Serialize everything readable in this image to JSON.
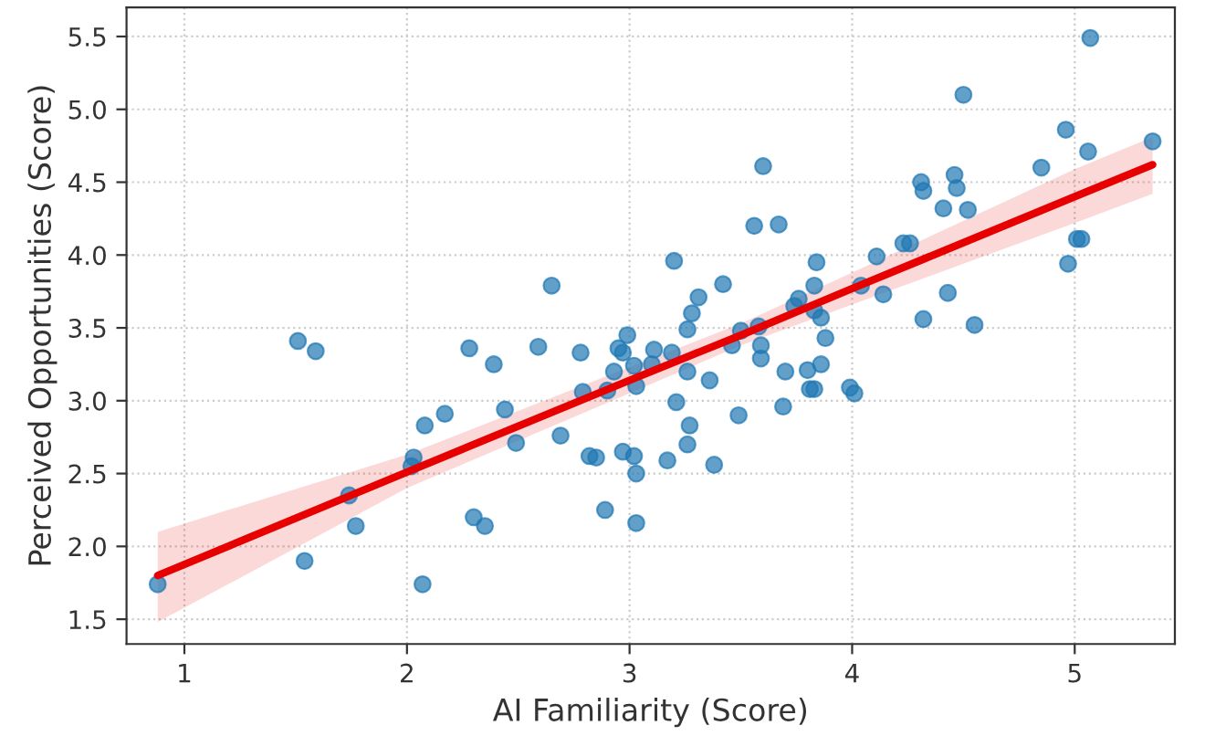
{
  "chart_data": {
    "type": "scatter",
    "xlabel": "AI Familiarity (Score)",
    "ylabel": "Perceived Opportunities (Score)",
    "xlim": [
      0.74,
      5.45
    ],
    "ylim": [
      1.33,
      5.7
    ],
    "xticks": [
      1,
      2,
      3,
      4,
      5
    ],
    "yticks": [
      {
        "value": 1.5,
        "label": "1.5"
      },
      {
        "value": 2,
        "label": "2.0"
      },
      {
        "value": 2.5,
        "label": "2.5"
      },
      {
        "value": 3,
        "label": "3.0"
      },
      {
        "value": 3.5,
        "label": "3.5"
      },
      {
        "value": 4,
        "label": "4.0"
      },
      {
        "value": 4.5,
        "label": "4.5"
      },
      {
        "value": 5,
        "label": "5.0"
      },
      {
        "value": 5.5,
        "label": "5.5"
      }
    ],
    "grid": true,
    "series": [
      {
        "marker": "circle",
        "color": "#1f77b4",
        "x": [
          0.88,
          1.51,
          1.59,
          1.54,
          1.74,
          1.77,
          2.03,
          2.02,
          2.08,
          2.17,
          2.07,
          2.3,
          2.35,
          2.28,
          2.39,
          2.44,
          2.49,
          2.59,
          2.65,
          2.69,
          2.78,
          2.79,
          2.9,
          2.93,
          2.89,
          2.82,
          2.85,
          2.97,
          3.02,
          3.03,
          3.03,
          2.95,
          2.97,
          2.99,
          3.02,
          3.03,
          3.11,
          3.1,
          3.17,
          3.19,
          3.2,
          3.21,
          3.26,
          3.26,
          3.28,
          3.27,
          3.26,
          3.31,
          3.36,
          3.38,
          3.42,
          3.46,
          3.49,
          3.5,
          3.58,
          3.59,
          3.59,
          3.56,
          3.67,
          3.6,
          3.7,
          3.69,
          3.74,
          3.76,
          3.8,
          3.81,
          3.83,
          3.83,
          3.84,
          3.83,
          3.86,
          3.88,
          3.86,
          3.99,
          4.01,
          4.04,
          4.11,
          4.14,
          4.23,
          4.26,
          4.31,
          4.32,
          4.41,
          4.32,
          4.43,
          4.46,
          4.47,
          4.5,
          4.52,
          4.55,
          4.85,
          4.96,
          4.97,
          5.01,
          5.03,
          5.06,
          5.07,
          5.35
        ],
        "values": [
          1.74,
          3.41,
          3.34,
          1.9,
          2.35,
          2.14,
          2.61,
          2.55,
          2.83,
          2.91,
          1.74,
          2.2,
          2.14,
          3.36,
          3.25,
          2.94,
          2.71,
          3.37,
          3.79,
          2.76,
          3.33,
          3.06,
          3.07,
          3.2,
          2.25,
          2.62,
          2.61,
          2.65,
          2.62,
          2.5,
          2.16,
          3.36,
          3.33,
          3.45,
          3.24,
          3.1,
          3.35,
          3.25,
          2.59,
          3.33,
          3.96,
          2.99,
          3.49,
          3.2,
          3.6,
          2.83,
          2.7,
          3.71,
          3.14,
          2.56,
          3.8,
          3.38,
          2.9,
          3.48,
          3.51,
          3.38,
          3.29,
          4.2,
          4.21,
          4.61,
          3.2,
          2.96,
          3.65,
          3.7,
          3.21,
          3.08,
          3.08,
          3.79,
          3.95,
          3.62,
          3.57,
          3.43,
          3.25,
          3.09,
          3.05,
          3.79,
          3.99,
          3.73,
          4.08,
          4.08,
          4.5,
          4.44,
          4.32,
          3.56,
          3.74,
          4.55,
          4.46,
          5.1,
          4.31,
          3.52,
          4.6,
          4.86,
          3.94,
          4.11,
          4.11,
          4.71,
          5.49,
          4.78
        ]
      },
      {
        "type": "line",
        "marker": "none",
        "color": "#e60000",
        "x": [
          0.88,
          2,
          3,
          3.5,
          4,
          5,
          5.35
        ],
        "values": [
          1.8,
          2.51,
          3.14,
          3.45,
          3.77,
          4.4,
          4.62
        ],
        "lower": [
          1.48,
          2.4,
          3.05,
          3.38,
          3.66,
          4.22,
          4.42
        ],
        "upper": [
          2.1,
          2.63,
          3.23,
          3.53,
          3.88,
          4.59,
          4.81
        ]
      }
    ]
  }
}
